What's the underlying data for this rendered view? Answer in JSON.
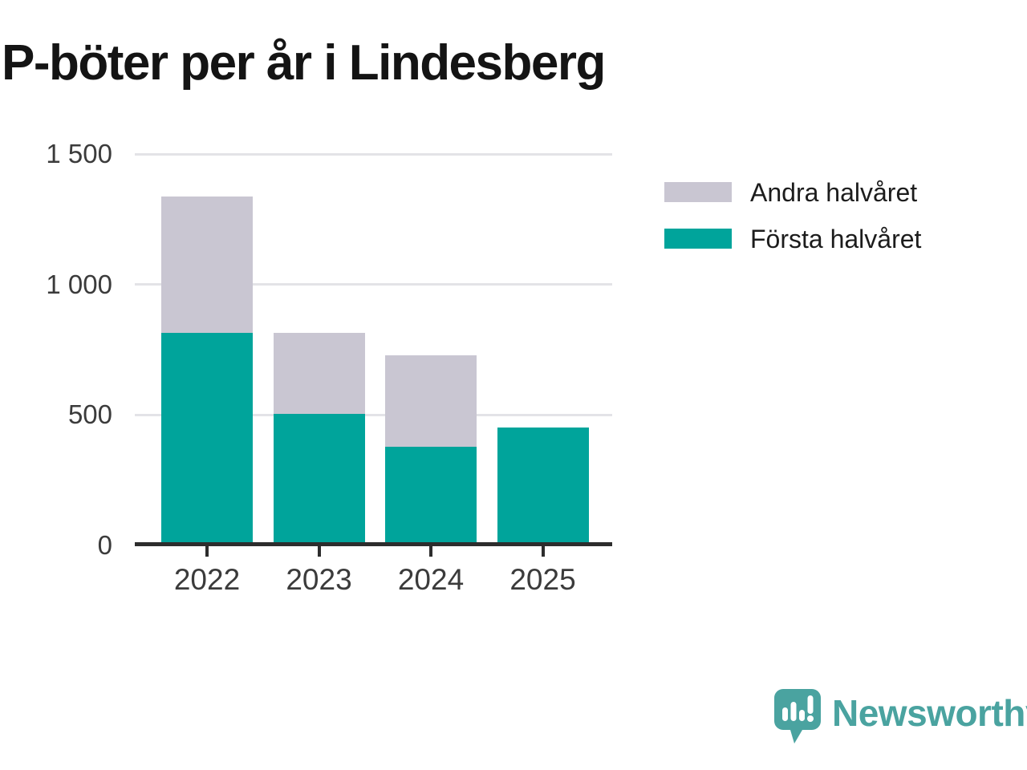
{
  "chart_data": {
    "type": "bar",
    "stacked": true,
    "title": "P-böter per år i Lindesberg",
    "categories": [
      "2022",
      "2023",
      "2024",
      "2025"
    ],
    "series": [
      {
        "name": "Första halvåret",
        "color": "#00a49b",
        "values": [
          810,
          500,
          375,
          450
        ]
      },
      {
        "name": "Andra halvåret",
        "color": "#c9c6d2",
        "values": [
          525,
          310,
          350,
          0
        ]
      }
    ],
    "ylim": [
      0,
      1500
    ],
    "yticks": [
      0,
      500,
      1000,
      1500
    ],
    "ytick_labels": [
      "0",
      "500",
      "1 000",
      "1 500"
    ],
    "xlabel": "",
    "ylabel": "",
    "grid": true,
    "legend_position": "top-right",
    "legend_order": [
      "Andra halvåret",
      "Första halvåret"
    ]
  },
  "branding": {
    "logo_text": "Newsworthy",
    "logo_color": "#4aa3a0"
  },
  "colors": {
    "background": "#ffffff",
    "title_text": "#141414",
    "tick_text": "#3b3b3b",
    "legend_text": "#1c1c1c",
    "axis": "#2d2d2d",
    "grid": "#e3e3e7",
    "first_half": "#00a49b",
    "second_half": "#c9c6d2"
  }
}
